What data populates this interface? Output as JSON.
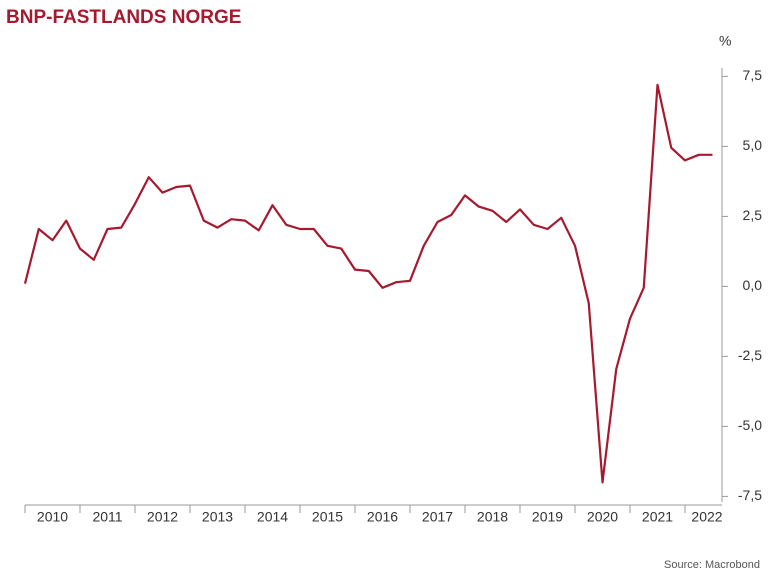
{
  "chart_data": {
    "type": "line",
    "title": "BNP-FASTLANDS NORGE",
    "y_unit": "%",
    "source": "Source: Macrobond",
    "x": [
      2010,
      2010.25,
      2010.5,
      2010.75,
      2011,
      2011.25,
      2011.5,
      2011.75,
      2012,
      2012.25,
      2012.5,
      2012.75,
      2013,
      2013.25,
      2013.5,
      2013.75,
      2014,
      2014.25,
      2014.5,
      2014.75,
      2015,
      2015.25,
      2015.5,
      2015.75,
      2016,
      2016.25,
      2016.5,
      2016.75,
      2017,
      2017.25,
      2017.5,
      2017.75,
      2018,
      2018.25,
      2018.5,
      2018.75,
      2019,
      2019.25,
      2019.5,
      2019.75,
      2020,
      2020.25,
      2020.5,
      2020.75,
      2021,
      2021.25,
      2021.5,
      2021.75,
      2022,
      2022.25,
      2022.5
    ],
    "series": [
      {
        "name": "BNP-Fastlands Norge",
        "color": "#a6192e",
        "values": [
          0.1,
          2.05,
          1.65,
          2.35,
          1.35,
          0.95,
          2.05,
          2.1,
          2.95,
          3.9,
          3.35,
          3.55,
          3.6,
          2.35,
          2.1,
          2.4,
          2.35,
          2.0,
          2.9,
          2.2,
          2.05,
          2.05,
          1.45,
          1.35,
          0.6,
          0.55,
          -0.05,
          0.15,
          0.2,
          1.45,
          2.3,
          2.55,
          3.25,
          2.85,
          2.7,
          2.3,
          2.75,
          2.2,
          2.05,
          2.45,
          1.45,
          -0.6,
          -7.0,
          -2.95,
          -1.15,
          -0.05,
          7.2,
          4.95,
          4.5,
          4.7,
          4.7
        ]
      }
    ],
    "xlim": [
      2010,
      2022.7
    ],
    "xticks": [
      {
        "value": 2010.5,
        "label": "2010"
      },
      {
        "value": 2011.5,
        "label": "2011"
      },
      {
        "value": 2012.5,
        "label": "2012"
      },
      {
        "value": 2013.5,
        "label": "2013"
      },
      {
        "value": 2014.5,
        "label": "2014"
      },
      {
        "value": 2015.5,
        "label": "2015"
      },
      {
        "value": 2016.5,
        "label": "2016"
      },
      {
        "value": 2017.5,
        "label": "2017"
      },
      {
        "value": 2018.5,
        "label": "2018"
      },
      {
        "value": 2019.5,
        "label": "2019"
      },
      {
        "value": 2020.5,
        "label": "2020"
      },
      {
        "value": 2021.5,
        "label": "2021"
      },
      {
        "value": 2022.4,
        "label": "2022"
      }
    ],
    "xtick_marks": [
      2010,
      2011,
      2012,
      2013,
      2014,
      2015,
      2016,
      2017,
      2018,
      2019,
      2020,
      2021,
      2022
    ],
    "ylim": [
      -7.7,
      7.8
    ],
    "yticks": [
      {
        "value": 7.5,
        "label": "7,5"
      },
      {
        "value": 5,
        "label": "5,0"
      },
      {
        "value": 2.5,
        "label": "2,5"
      },
      {
        "value": 0,
        "label": "0,0"
      },
      {
        "value": -2.5,
        "label": "-2,5"
      },
      {
        "value": -5,
        "label": "-5,0"
      },
      {
        "value": -7.5,
        "label": "-7,5"
      }
    ],
    "grid": false
  }
}
